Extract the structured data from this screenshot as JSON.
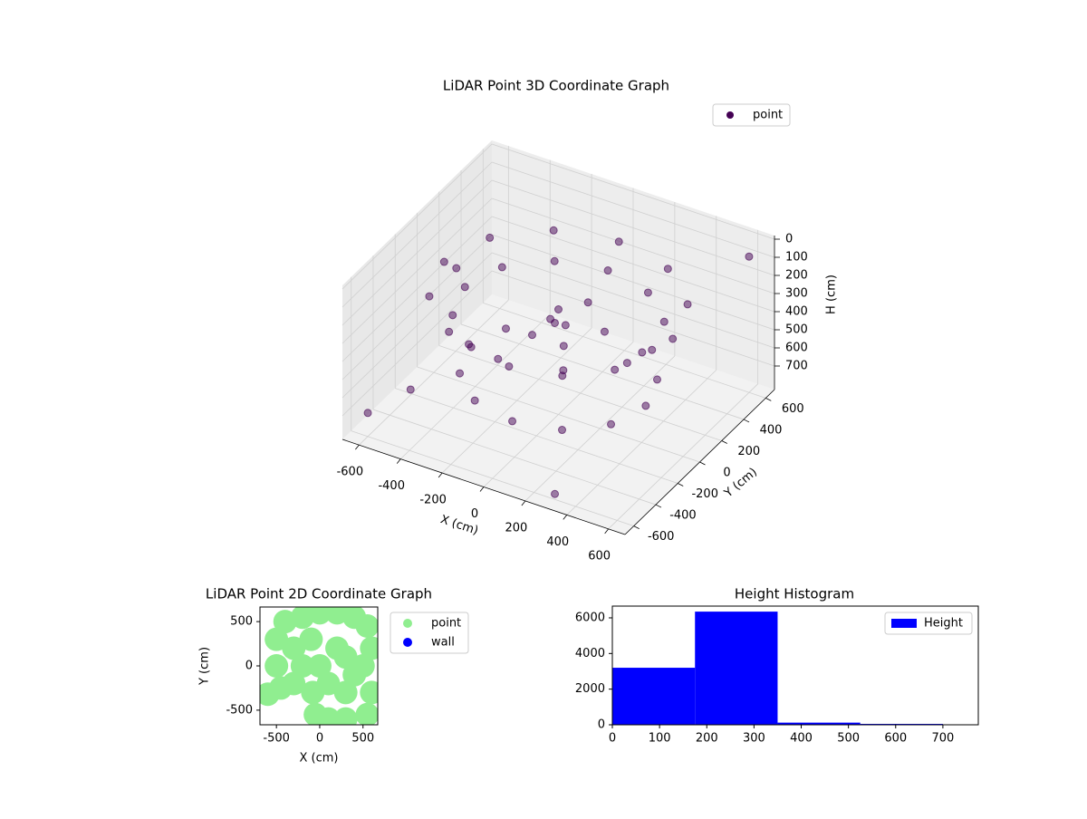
{
  "chart_data": [
    {
      "type": "scatter3d",
      "title": "LiDAR Point 3D Coordinate Graph",
      "xlabel": "X (cm)",
      "ylabel": "Y (cm)",
      "zlabel": "H (cm)",
      "xlim": [
        -680,
        680
      ],
      "ylim": [
        -680,
        680
      ],
      "zlim": [
        -20,
        830
      ],
      "z_inverted": true,
      "xticks": [
        -600,
        -400,
        -200,
        0,
        200,
        400,
        600
      ],
      "yticks": [
        -600,
        -400,
        -200,
        0,
        200,
        400,
        600
      ],
      "zticks": [
        0,
        100,
        200,
        300,
        400,
        500,
        600,
        700
      ],
      "grid": true,
      "legend": "upper right",
      "series": [
        {
          "name": "point",
          "color": "#440154",
          "x": [
            550,
            476,
            275,
            0,
            -275,
            -476,
            -550,
            -476,
            -275,
            0,
            275,
            476,
            450,
            390,
            225,
            0,
            -225,
            -390,
            -450,
            -390,
            -225,
            0,
            225,
            390,
            420,
            364,
            210,
            0,
            -210,
            -364,
            -420,
            -364,
            -210,
            0,
            210,
            364,
            0,
            50,
            -60,
            100,
            -100,
            20,
            -600,
            -500,
            300,
            600,
            -650
          ],
          "y": [
            0,
            275,
            476,
            550,
            476,
            275,
            0,
            -275,
            -476,
            -550,
            -476,
            -275,
            0,
            225,
            390,
            450,
            390,
            225,
            0,
            -225,
            -390,
            -450,
            -390,
            -225,
            0,
            210,
            364,
            420,
            364,
            210,
            0,
            -210,
            -364,
            -420,
            -364,
            -210,
            0,
            -30,
            40,
            80,
            -50,
            10,
            -600,
            -400,
            -600,
            600,
            300
          ],
          "z": [
            200,
            200,
            200,
            200,
            200,
            200,
            200,
            200,
            200,
            200,
            200,
            200,
            300,
            300,
            300,
            300,
            300,
            300,
            300,
            300,
            300,
            300,
            300,
            300,
            620,
            620,
            620,
            620,
            620,
            620,
            620,
            620,
            620,
            620,
            620,
            620,
            250,
            300,
            350,
            220,
            400,
            450,
            700,
            650,
            800,
            80,
            450
          ]
        }
      ]
    },
    {
      "type": "scatter",
      "title": "LiDAR Point 2D Coordinate Graph",
      "xlabel": "X (cm)",
      "ylabel": "Y (cm)",
      "xlim": [
        -690,
        670
      ],
      "ylim": [
        -665,
        665
      ],
      "xticks": [
        -500,
        0,
        500
      ],
      "yticks": [
        -500,
        0,
        500
      ],
      "legend": "outside upper right",
      "series": [
        {
          "name": "point",
          "color": "#90ee90",
          "x": [
            -600,
            -450,
            -300,
            -500,
            -500,
            -400,
            -300,
            -200,
            0,
            200,
            400,
            550,
            600,
            500,
            600,
            550,
            300,
            100,
            -50,
            -80,
            100,
            300,
            0,
            200,
            -200,
            300,
            -100,
            400
          ],
          "y": [
            -320,
            -250,
            -200,
            0,
            300,
            500,
            200,
            550,
            600,
            600,
            550,
            450,
            200,
            0,
            -300,
            -550,
            -600,
            -600,
            -550,
            -300,
            -200,
            -300,
            0,
            200,
            0,
            100,
            300,
            -100
          ]
        },
        {
          "name": "wall",
          "color": "#0000ff",
          "x": [],
          "y": []
        }
      ]
    },
    {
      "type": "histogram",
      "title": "Height Histogram",
      "xlim": [
        0,
        775
      ],
      "ylim": [
        0,
        6660
      ],
      "xticks": [
        0,
        100,
        200,
        300,
        400,
        500,
        600,
        700
      ],
      "yticks": [
        0,
        2000,
        4000,
        6000
      ],
      "legend": "upper right",
      "bins": [
        0,
        175,
        350,
        525,
        700
      ],
      "series": [
        {
          "name": "Height",
          "color": "#0000ff",
          "values": [
            3200,
            6350,
            120,
            50
          ]
        }
      ]
    }
  ]
}
